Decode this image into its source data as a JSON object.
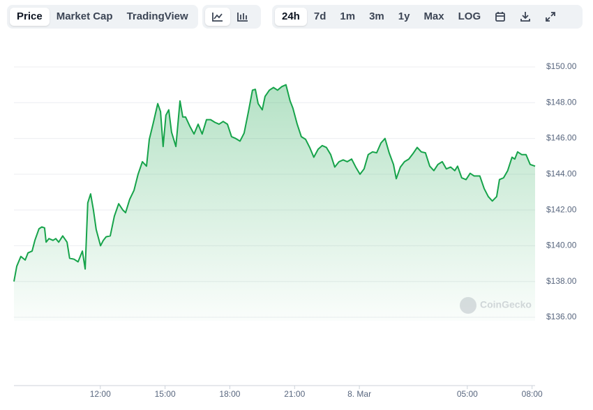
{
  "toolbar": {
    "views": [
      "Price",
      "Market Cap",
      "TradingView"
    ],
    "ranges": [
      "24h",
      "7d",
      "1m",
      "3m",
      "1y",
      "Max",
      "LOG"
    ]
  },
  "watermark": "CoinGecko",
  "chart_data": {
    "type": "line",
    "color": "#16a34a",
    "x": [
      8.0,
      8.13,
      8.32,
      8.52,
      8.65,
      8.84,
      8.97,
      9.16,
      9.29,
      9.42,
      9.49,
      9.62,
      9.81,
      9.94,
      10.07,
      10.26,
      10.46,
      10.58,
      10.78,
      10.97,
      11.17,
      11.3,
      11.42,
      11.55,
      11.68,
      11.81,
      12.01,
      12.14,
      12.27,
      12.46,
      12.65,
      12.85,
      13.04,
      13.17,
      13.36,
      13.56,
      13.75,
      13.95,
      14.14,
      14.27,
      14.46,
      14.66,
      14.79,
      14.91,
      15.04,
      15.17,
      15.3,
      15.5,
      15.69,
      15.82,
      15.95,
      16.14,
      16.34,
      16.53,
      16.72,
      16.92,
      17.11,
      17.31,
      17.5,
      17.69,
      17.89,
      18.08,
      18.27,
      18.47,
      18.66,
      18.86,
      19.05,
      19.18,
      19.31,
      19.5,
      19.63,
      19.83,
      20.02,
      20.21,
      20.41,
      20.6,
      20.79,
      20.92,
      21.12,
      21.31,
      21.51,
      21.7,
      21.89,
      22.09,
      22.28,
      22.47,
      22.67,
      22.86,
      23.06,
      23.25,
      23.44,
      23.64,
      23.83,
      24.03,
      24.22,
      24.41,
      24.61,
      24.8,
      25.0,
      25.19,
      25.38,
      25.58,
      25.71,
      25.9,
      26.09,
      26.29,
      26.48,
      26.68,
      26.87,
      27.06,
      27.26,
      27.45,
      27.64,
      27.84,
      28.03,
      28.23,
      28.42,
      28.55,
      28.74,
      28.94,
      29.13,
      29.32,
      29.58,
      29.78,
      29.97,
      30.16,
      30.36,
      30.49,
      30.68,
      30.87,
      31.07,
      31.2,
      31.33,
      31.52,
      31.72,
      31.91,
      32.14
    ],
    "values": [
      138.0,
      138.85,
      139.4,
      139.2,
      139.6,
      139.7,
      140.3,
      140.95,
      141.05,
      141.0,
      140.2,
      140.4,
      140.3,
      140.4,
      140.2,
      140.55,
      140.2,
      139.3,
      139.25,
      139.1,
      139.7,
      138.7,
      142.4,
      142.9,
      142.0,
      140.9,
      140.0,
      140.3,
      140.5,
      140.55,
      141.65,
      142.35,
      142.0,
      141.85,
      142.6,
      143.1,
      144.0,
      144.7,
      144.45,
      145.95,
      146.9,
      147.95,
      147.5,
      145.55,
      147.3,
      147.6,
      146.35,
      145.55,
      148.1,
      147.2,
      147.2,
      146.7,
      146.25,
      146.8,
      146.25,
      147.05,
      147.05,
      146.9,
      146.8,
      146.95,
      146.8,
      146.1,
      146.0,
      145.85,
      146.3,
      147.5,
      148.7,
      148.75,
      147.95,
      147.6,
      148.35,
      148.7,
      148.85,
      148.7,
      148.9,
      149.0,
      148.1,
      147.7,
      146.8,
      146.1,
      145.95,
      145.5,
      144.95,
      145.4,
      145.6,
      145.5,
      145.1,
      144.4,
      144.7,
      144.8,
      144.7,
      144.85,
      144.4,
      144.0,
      144.3,
      145.1,
      145.25,
      145.2,
      145.75,
      146.0,
      145.2,
      144.55,
      143.75,
      144.4,
      144.7,
      144.85,
      145.15,
      145.5,
      145.25,
      145.2,
      144.45,
      144.2,
      144.55,
      144.7,
      144.3,
      144.4,
      144.2,
      144.45,
      143.8,
      143.7,
      144.05,
      143.9,
      143.9,
      143.2,
      142.75,
      142.5,
      142.75,
      143.7,
      143.8,
      144.2,
      144.95,
      144.85,
      145.25,
      145.1,
      145.1,
      144.55,
      144.45
    ],
    "xlim": [
      8,
      32.14
    ],
    "xticks": [
      {
        "value": 12,
        "label": "12:00"
      },
      {
        "value": 15,
        "label": "15:00"
      },
      {
        "value": 18,
        "label": "18:00"
      },
      {
        "value": 21,
        "label": "21:00"
      },
      {
        "value": 24,
        "label": "8. Mar"
      },
      {
        "value": 29,
        "label": "05:00"
      },
      {
        "value": 32,
        "label": "08:00"
      }
    ],
    "ylim": [
      136,
      150
    ],
    "yticks": [
      {
        "value": 136,
        "label": "$136.00"
      },
      {
        "value": 138,
        "label": "$138.00"
      },
      {
        "value": 140,
        "label": "$140.00"
      },
      {
        "value": 142,
        "label": "$142.00"
      },
      {
        "value": 144,
        "label": "$144.00"
      },
      {
        "value": 146,
        "label": "$146.00"
      },
      {
        "value": 148,
        "label": "$148.00"
      },
      {
        "value": 150,
        "label": "$150.00"
      }
    ],
    "grid": true
  }
}
